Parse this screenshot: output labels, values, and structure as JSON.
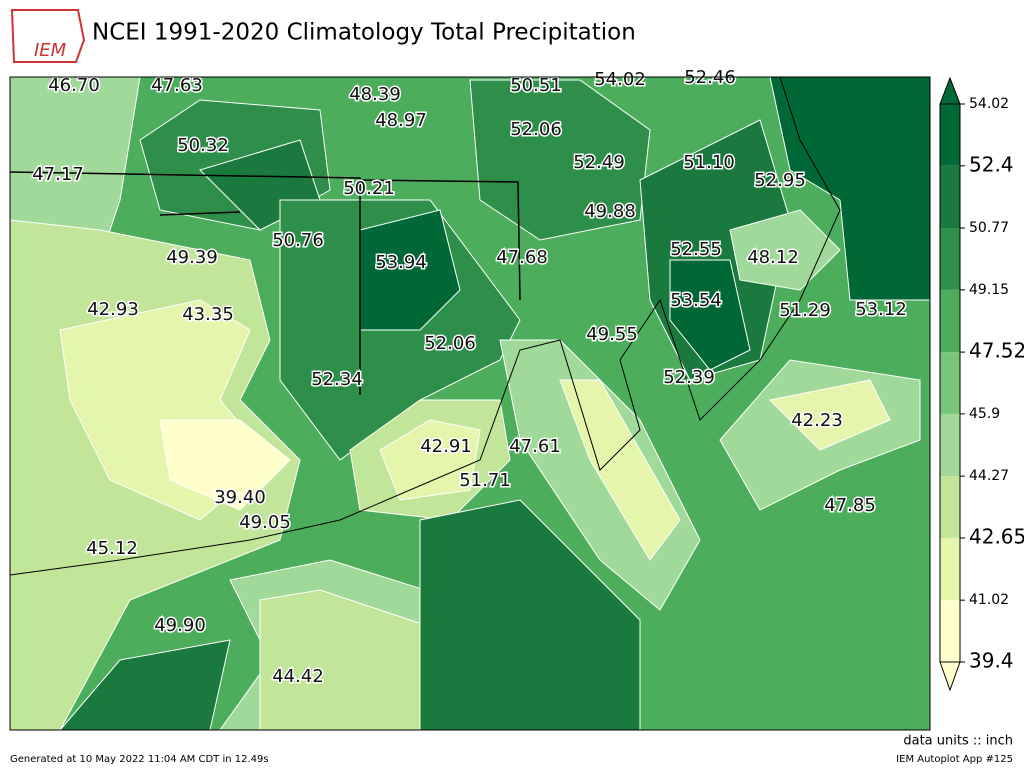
{
  "header": {
    "logo": "IEM",
    "title": "NCEI 1991-2020 Climatology Total Precipitation"
  },
  "map": {
    "labels": [
      "46.70",
      "47.63",
      "48.39",
      "50.51",
      "54.02",
      "52.46",
      "48.97",
      "52.06",
      "50.32",
      "52.49",
      "51.10",
      "47.17",
      "50.21",
      "52.95",
      "49.88",
      "50.76",
      "52.55",
      "48.12",
      "49.39",
      "53.94",
      "47.68",
      "42.93",
      "43.35",
      "53.54",
      "51.29",
      "53.12",
      "49.55",
      "52.06",
      "52.34",
      "52.39",
      "42.23",
      "42.91",
      "47.61",
      "51.71",
      "39.40",
      "49.05",
      "47.85",
      "45.12",
      "49.90",
      "44.42"
    ]
  },
  "colorbar": {
    "ticks": [
      54.02,
      52.4,
      50.77,
      49.15,
      47.52,
      45.9,
      44.27,
      42.65,
      41.02,
      39.4
    ],
    "colors": [
      "#006837",
      "#1a7a3e",
      "#2e8f4a",
      "#4cae5c",
      "#78c679",
      "#a1d99b",
      "#c2e699",
      "#e5f5ac",
      "#ffffcc"
    ],
    "units": "data units :: inch"
  },
  "footer": {
    "generated": "Generated at 10 May 2022 11:04 AM CDT in 12.49s",
    "app": "IEM Autoplot App #125"
  }
}
